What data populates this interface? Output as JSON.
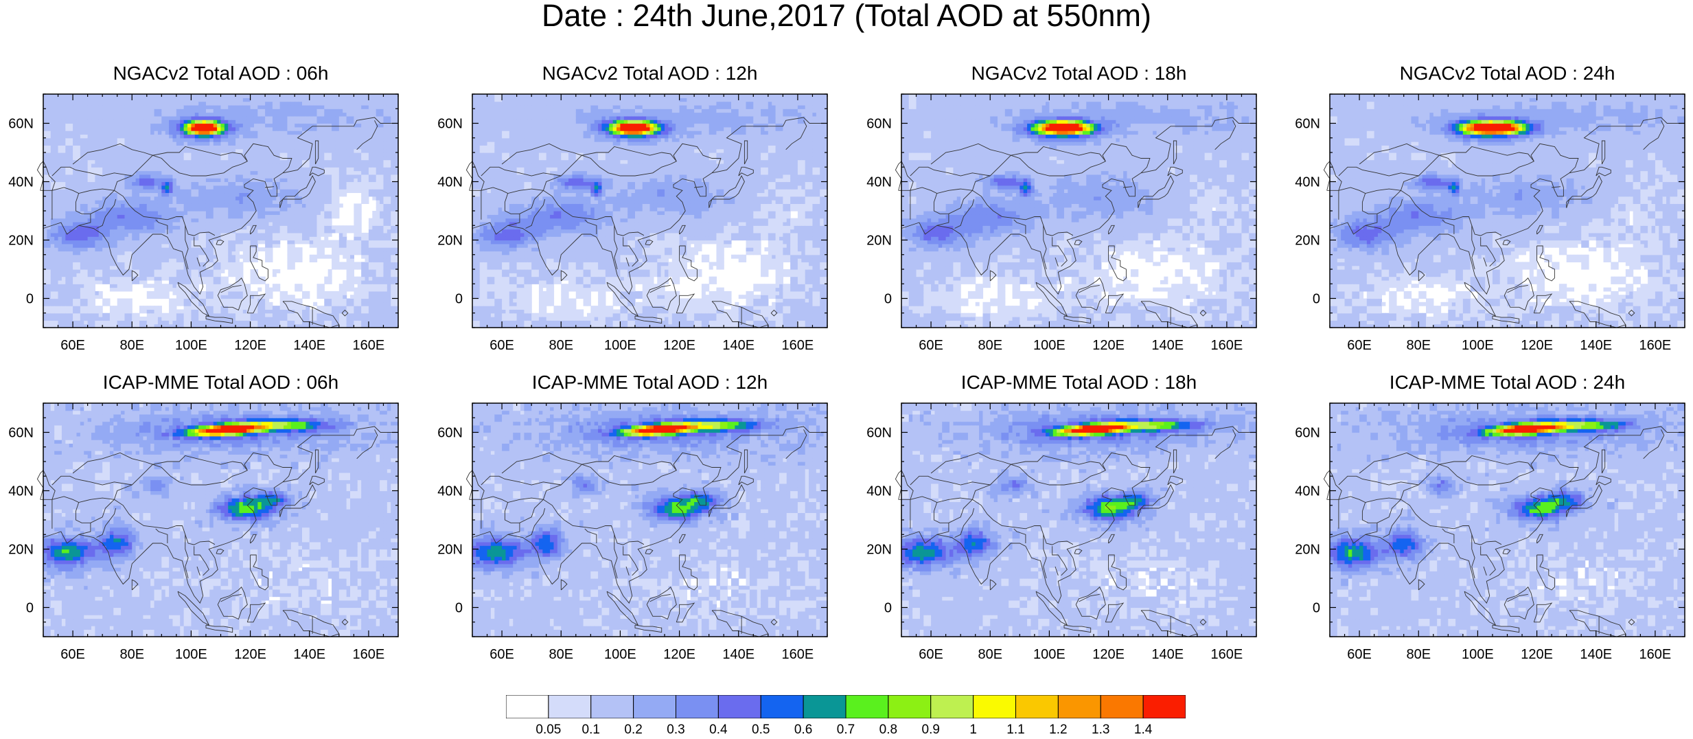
{
  "figure": {
    "title": "Date : 24th June,2017 (Total AOD at 550nm)"
  },
  "panels": [
    {
      "title": "NGACv2 Total AOD : 06h",
      "model": "NGACv2",
      "hour": "06h"
    },
    {
      "title": "NGACv2 Total AOD : 12h",
      "model": "NGACv2",
      "hour": "12h"
    },
    {
      "title": "NGACv2 Total AOD : 18h",
      "model": "NGACv2",
      "hour": "18h"
    },
    {
      "title": "NGACv2 Total AOD : 24h",
      "model": "NGACv2",
      "hour": "24h"
    },
    {
      "title": "ICAP-MME Total AOD : 06h",
      "model": "ICAP-MME",
      "hour": "06h"
    },
    {
      "title": "ICAP-MME Total AOD : 12h",
      "model": "ICAP-MME",
      "hour": "12h"
    },
    {
      "title": "ICAP-MME Total AOD : 18h",
      "model": "ICAP-MME",
      "hour": "18h"
    },
    {
      "title": "ICAP-MME Total AOD : 24h",
      "model": "ICAP-MME",
      "hour": "24h"
    }
  ],
  "axes": {
    "lon_ticks": [
      "60E",
      "80E",
      "100E",
      "120E",
      "140E",
      "160E"
    ],
    "lon_values": [
      60,
      80,
      100,
      120,
      140,
      160
    ],
    "lat_ticks": [
      "60N",
      "40N",
      "20N",
      "0"
    ],
    "lat_values": [
      60,
      40,
      20,
      0
    ],
    "lon_range": [
      50,
      170
    ],
    "lat_range": [
      -10,
      70
    ]
  },
  "colorbar": {
    "labels": [
      "0.05",
      "0.1",
      "0.2",
      "0.3",
      "0.4",
      "0.5",
      "0.6",
      "0.7",
      "0.8",
      "0.9",
      "1",
      "1.1",
      "1.2",
      "1.3",
      "1.4"
    ],
    "colors": [
      "#ffffff",
      "#d4dcfa",
      "#b4c2f6",
      "#94aaf4",
      "#7a90f2",
      "#6a6cee",
      "#1464f0",
      "#0a9696",
      "#5af01e",
      "#8cf014",
      "#bef050",
      "#fafa00",
      "#fac800",
      "#fa9600",
      "#fa7800",
      "#fa1e00"
    ]
  }
}
